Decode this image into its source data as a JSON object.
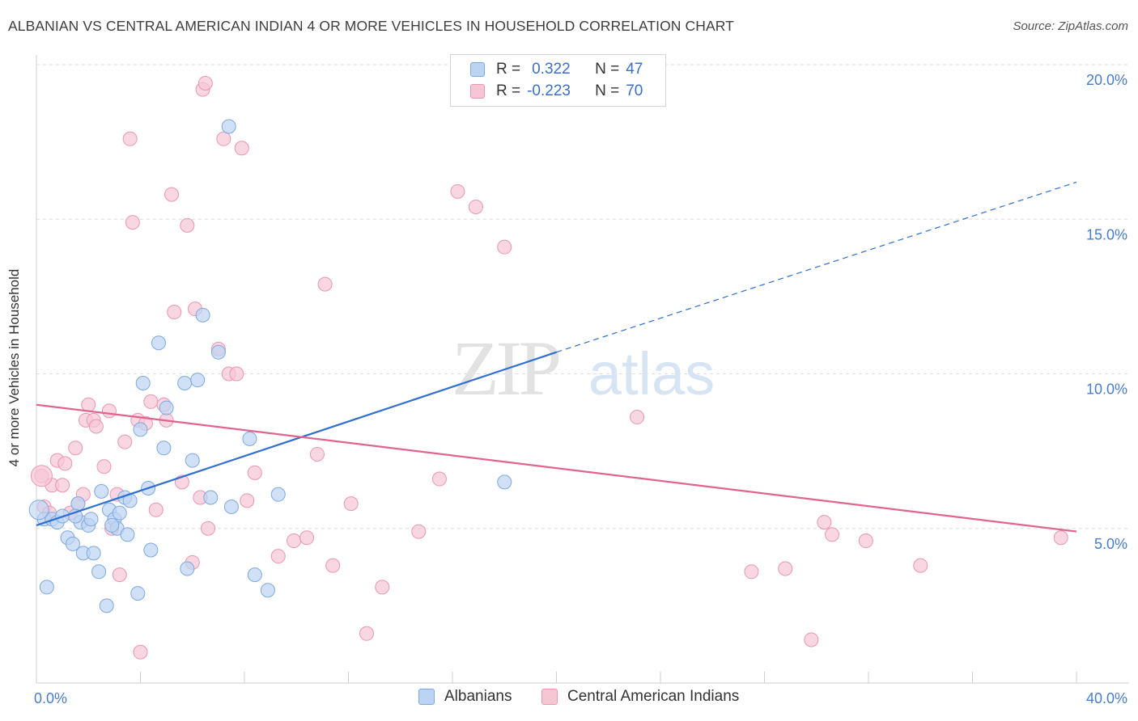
{
  "header": {
    "title": "ALBANIAN VS CENTRAL AMERICAN INDIAN 4 OR MORE VEHICLES IN HOUSEHOLD CORRELATION CHART",
    "source": "Source: ZipAtlas.com"
  },
  "watermark": {
    "zip": "ZIP",
    "atlas": "atlas"
  },
  "legend_top": {
    "rows": [
      {
        "r_label": "R =",
        "r_value": "0.322",
        "n_label": "N =",
        "n_value": "47"
      },
      {
        "r_label": "R =",
        "r_value": "-0.223",
        "n_label": "N =",
        "n_value": "70"
      }
    ]
  },
  "legend_bottom": {
    "items": [
      "Albanians",
      "Central American Indians"
    ]
  },
  "colors": {
    "albanians_fill": "#bcd4f3",
    "albanians_stroke": "#7ea8de",
    "albanians_line": "#2e6fcf",
    "cai_fill": "#f7c6d5",
    "cai_stroke": "#e996b1",
    "cai_line": "#e0648f",
    "tick": "#4a7cc9",
    "grid": "#dddddd"
  },
  "chart_data": {
    "type": "scatter",
    "title": "ALBANIAN VS CENTRAL AMERICAN INDIAN 4 OR MORE VEHICLES IN HOUSEHOLD CORRELATION CHART",
    "xlabel": "",
    "ylabel": "4 or more Vehicles in Household",
    "xlim": [
      0,
      40
    ],
    "ylim": [
      0,
      20.5
    ],
    "x_tick_labels": [
      "0.0%",
      "40.0%"
    ],
    "y_ticks": [
      5,
      10,
      15,
      20
    ],
    "y_tick_labels": [
      "5.0%",
      "10.0%",
      "15.0%",
      "20.0%"
    ],
    "grid": true,
    "legend_position": "top-center",
    "series": [
      {
        "name": "Albanians",
        "R": 0.322,
        "N": 47,
        "trend": {
          "x0": 0,
          "y0": 5.1,
          "x1": 20,
          "y1": 10.7,
          "dash_to_x": 40,
          "dash_to_y": 16.2
        },
        "points": [
          [
            0.3,
            5.3
          ],
          [
            0.6,
            5.3
          ],
          [
            0.8,
            5.2
          ],
          [
            0.4,
            3.1
          ],
          [
            1.0,
            5.4
          ],
          [
            1.2,
            4.7
          ],
          [
            1.4,
            4.5
          ],
          [
            1.6,
            5.8
          ],
          [
            1.7,
            5.2
          ],
          [
            1.8,
            4.2
          ],
          [
            2.0,
            5.1
          ],
          [
            2.1,
            5.3
          ],
          [
            2.2,
            4.2
          ],
          [
            2.4,
            3.6
          ],
          [
            2.5,
            6.2
          ],
          [
            2.7,
            2.5
          ],
          [
            2.8,
            5.6
          ],
          [
            3.0,
            5.3
          ],
          [
            3.1,
            5.0
          ],
          [
            3.2,
            5.5
          ],
          [
            3.4,
            6.0
          ],
          [
            3.5,
            4.8
          ],
          [
            3.6,
            5.9
          ],
          [
            3.9,
            2.9
          ],
          [
            4.0,
            8.2
          ],
          [
            4.1,
            9.7
          ],
          [
            4.3,
            6.3
          ],
          [
            4.4,
            4.3
          ],
          [
            4.7,
            11.0
          ],
          [
            4.9,
            7.6
          ],
          [
            5.0,
            8.9
          ],
          [
            5.7,
            9.7
          ],
          [
            5.8,
            3.7
          ],
          [
            6.0,
            7.2
          ],
          [
            6.2,
            9.8
          ],
          [
            6.4,
            11.9
          ],
          [
            6.7,
            6.0
          ],
          [
            7.0,
            10.7
          ],
          [
            7.4,
            18.0
          ],
          [
            7.5,
            5.7
          ],
          [
            8.2,
            7.9
          ],
          [
            8.4,
            3.5
          ],
          [
            8.9,
            3.0
          ],
          [
            9.3,
            6.1
          ],
          [
            18.0,
            6.5
          ],
          [
            1.5,
            5.4
          ],
          [
            2.9,
            5.1
          ]
        ]
      },
      {
        "name": "Central American Indians",
        "R": -0.223,
        "N": 70,
        "trend": {
          "x0": 0,
          "y0": 9.0,
          "x1": 40,
          "y1": 4.9
        },
        "points": [
          [
            0.2,
            6.7
          ],
          [
            0.3,
            5.7
          ],
          [
            0.5,
            5.5
          ],
          [
            0.6,
            6.4
          ],
          [
            0.8,
            7.2
          ],
          [
            1.0,
            6.4
          ],
          [
            1.1,
            7.1
          ],
          [
            1.3,
            5.5
          ],
          [
            1.5,
            7.6
          ],
          [
            1.6,
            5.8
          ],
          [
            1.8,
            6.1
          ],
          [
            1.9,
            8.5
          ],
          [
            2.0,
            9.0
          ],
          [
            2.2,
            8.5
          ],
          [
            2.3,
            8.3
          ],
          [
            2.6,
            7.0
          ],
          [
            2.8,
            8.8
          ],
          [
            2.9,
            5.0
          ],
          [
            3.1,
            6.1
          ],
          [
            3.2,
            3.5
          ],
          [
            3.4,
            7.8
          ],
          [
            3.6,
            17.6
          ],
          [
            3.7,
            14.9
          ],
          [
            3.9,
            8.5
          ],
          [
            4.0,
            1.0
          ],
          [
            4.2,
            8.4
          ],
          [
            4.4,
            9.1
          ],
          [
            4.6,
            5.6
          ],
          [
            4.9,
            9.0
          ],
          [
            5.0,
            8.5
          ],
          [
            5.2,
            15.8
          ],
          [
            5.3,
            12.0
          ],
          [
            5.6,
            6.5
          ],
          [
            5.8,
            14.8
          ],
          [
            6.0,
            3.9
          ],
          [
            6.1,
            12.1
          ],
          [
            6.3,
            6.0
          ],
          [
            6.4,
            19.2
          ],
          [
            6.5,
            19.4
          ],
          [
            6.6,
            5.0
          ],
          [
            7.0,
            10.8
          ],
          [
            7.2,
            17.6
          ],
          [
            7.4,
            10.0
          ],
          [
            7.7,
            10.0
          ],
          [
            7.9,
            17.3
          ],
          [
            8.1,
            5.9
          ],
          [
            8.4,
            6.8
          ],
          [
            9.3,
            4.1
          ],
          [
            9.9,
            4.6
          ],
          [
            10.4,
            4.7
          ],
          [
            10.8,
            7.4
          ],
          [
            11.1,
            12.9
          ],
          [
            11.4,
            3.8
          ],
          [
            12.1,
            5.8
          ],
          [
            12.7,
            1.6
          ],
          [
            13.3,
            3.1
          ],
          [
            14.7,
            4.9
          ],
          [
            15.5,
            6.6
          ],
          [
            16.2,
            15.9
          ],
          [
            16.9,
            15.4
          ],
          [
            18.0,
            14.1
          ],
          [
            23.1,
            8.6
          ],
          [
            27.5,
            3.6
          ],
          [
            28.8,
            3.7
          ],
          [
            29.8,
            1.4
          ],
          [
            30.3,
            5.2
          ],
          [
            30.6,
            4.8
          ],
          [
            31.9,
            4.6
          ],
          [
            34.0,
            3.8
          ],
          [
            39.4,
            4.7
          ]
        ]
      }
    ]
  }
}
